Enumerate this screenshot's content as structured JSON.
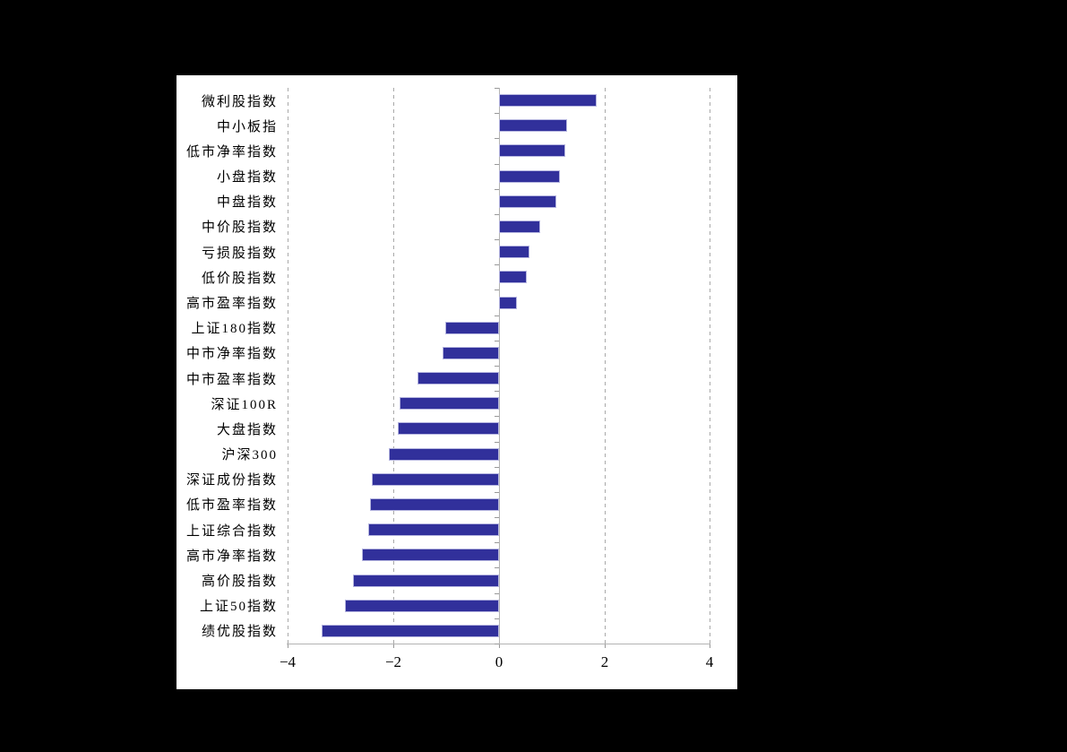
{
  "page": {
    "background": "#000000"
  },
  "panel": {
    "background": "#ffffff"
  },
  "chart_data": {
    "type": "bar",
    "orientation": "horizontal",
    "title": "",
    "xlabel": "",
    "ylabel": "",
    "xlim": [
      -4,
      4
    ],
    "xticks": [
      -4,
      -2,
      0,
      2,
      4
    ],
    "xtick_labels": [
      "−4",
      "−2",
      "0",
      "2",
      "4"
    ],
    "grid": "vertical-dashed",
    "legend": "none",
    "categories": [
      "微利股指数",
      "中小板指",
      "低市净率指数",
      "小盘指数",
      "中盘指数",
      "中价股指数",
      "亏损股指数",
      "低价股指数",
      "高市盈率指数",
      "上证180指数",
      "中市净率指数",
      "中市盈率指数",
      "深证100R",
      "大盘指数",
      "沪深300",
      "深证成份指数",
      "低市盈率指数",
      "上证综合指数",
      "高市净率指数",
      "高价股指数",
      "上证50指数",
      "绩优股指数"
    ],
    "values": [
      1.85,
      1.29,
      1.25,
      1.15,
      1.08,
      0.78,
      0.58,
      0.53,
      0.34,
      -1.02,
      -1.07,
      -1.54,
      -1.88,
      -1.92,
      -2.08,
      -2.41,
      -2.44,
      -2.47,
      -2.59,
      -2.76,
      -2.92,
      -3.36
    ],
    "colors": {
      "bar_fill": "#31309b",
      "bar_border": "#b7b7e0",
      "gridline": "#a9a9a9",
      "axis_line": "#b3b3b3",
      "tick": "#999999",
      "text": "#000000"
    }
  }
}
